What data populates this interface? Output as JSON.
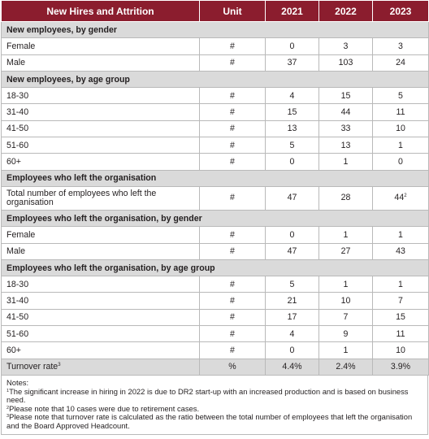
{
  "header": {
    "title": "New Hires and Attrition",
    "unit": "Unit",
    "years": [
      "2021",
      "2022",
      "2023"
    ]
  },
  "sections": [
    {
      "title": "New employees, by gender",
      "rows": [
        {
          "label": "Female",
          "unit": "#",
          "values": [
            "0",
            "3",
            "3"
          ]
        },
        {
          "label": "Male",
          "unit": "#",
          "values": [
            "37",
            "103",
            "24"
          ]
        }
      ]
    },
    {
      "title": "New employees, by age group",
      "rows": [
        {
          "label": "18-30",
          "unit": "#",
          "values": [
            "4",
            "15",
            "5"
          ]
        },
        {
          "label": "31-40",
          "unit": "#",
          "values": [
            "15",
            "44",
            "11"
          ]
        },
        {
          "label": "41-50",
          "unit": "#",
          "values": [
            "13",
            "33",
            "10"
          ]
        },
        {
          "label": "51-60",
          "unit": "#",
          "values": [
            "5",
            "13",
            "1"
          ]
        },
        {
          "label": "60+",
          "unit": "#",
          "values": [
            "0",
            "1",
            "0"
          ]
        }
      ]
    },
    {
      "title": "Employees who left the organisation",
      "rows": [
        {
          "label": "Total number of employees who left the organisation",
          "unit": "#",
          "values": [
            "47",
            "28",
            "44"
          ],
          "value_sup": [
            "",
            "",
            "2"
          ]
        }
      ]
    },
    {
      "title": "Employees who left the organisation, by gender",
      "rows": [
        {
          "label": "Female",
          "unit": "#",
          "values": [
            "0",
            "1",
            "1"
          ]
        },
        {
          "label": "Male",
          "unit": "#",
          "values": [
            "47",
            "27",
            "43"
          ]
        }
      ]
    },
    {
      "title": "Employees who left the organisation, by age group",
      "rows": [
        {
          "label": "18-30",
          "unit": "#",
          "values": [
            "5",
            "1",
            "1"
          ]
        },
        {
          "label": "31-40",
          "unit": "#",
          "values": [
            "21",
            "10",
            "7"
          ]
        },
        {
          "label": "41-50",
          "unit": "#",
          "values": [
            "17",
            "7",
            "15"
          ]
        },
        {
          "label": "51-60",
          "unit": "#",
          "values": [
            "4",
            "9",
            "11"
          ]
        },
        {
          "label": "60+",
          "unit": "#",
          "values": [
            "0",
            "1",
            "10"
          ]
        }
      ]
    }
  ],
  "turnover": {
    "label": "Turnover rate",
    "label_sup": "3",
    "unit": "%",
    "values": [
      "4.4%",
      "2.4%",
      "3.9%"
    ]
  },
  "notes": {
    "heading": "Notes:",
    "items": [
      {
        "sup": "1",
        "text": "The significant increase in hiring in 2022 is due to DR2 start-up with an increased production and is based on business need."
      },
      {
        "sup": "2",
        "text": "Please note that 10 cases were due to retirement cases."
      },
      {
        "sup": "3",
        "text": "Please note that turnover rate is calculated as the ratio between the total number of employees that left the organisation and the Board Approved Headcount."
      }
    ]
  },
  "colors": {
    "header_bg": "#8b1d2e",
    "section_bg": "#dadada",
    "border": "#b9b9b9"
  }
}
